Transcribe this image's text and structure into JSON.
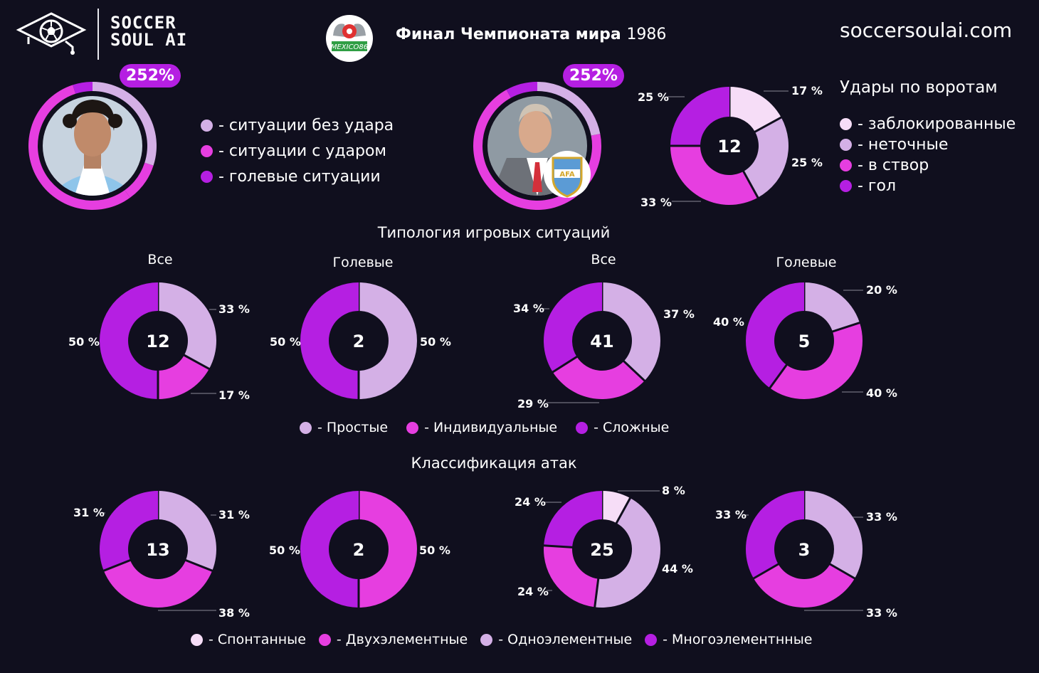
{
  "header": {
    "brand_line1": "SOCCER",
    "brand_line2": "SOUL AI",
    "emblem_text": "MEXICO86",
    "title_bold": "Финал Чемпионата мира",
    "title_year": "1986",
    "site": "soccersoulai.com"
  },
  "players": [
    {
      "badge": "252%",
      "ring": {
        "values": [
          30,
          10,
          55,
          5
        ],
        "colors": [
          "#d4b0e6",
          "#e63ee0",
          "#e63ee0",
          "#b51fe2"
        ]
      }
    },
    {
      "badge": "252%",
      "ring": {
        "values": [
          22,
          15,
          55,
          8
        ],
        "colors": [
          "#d4b0e6",
          "#e63ee0",
          "#e63ee0",
          "#b51fe2"
        ]
      }
    }
  ],
  "situations_legend": [
    {
      "label": "- ситуации без удара",
      "color": "#d4b0e6"
    },
    {
      "label": "- ситуации с ударом",
      "color": "#e63ee0"
    },
    {
      "label": "- голевые ситуации",
      "color": "#b51fe2"
    }
  ],
  "shots_legend": {
    "title": "Удары по воротам",
    "items": [
      {
        "label": "- заблокированные",
        "color": "#f6ddf7"
      },
      {
        "label": "- неточные",
        "color": "#d4b0e6"
      },
      {
        "label": "- в створ",
        "color": "#e63ee0"
      },
      {
        "label": "- гол",
        "color": "#b51fe2"
      }
    ]
  },
  "sections": {
    "typology": "Типология игровых ситуаций",
    "attacks": "Классификация атак"
  },
  "typology_legend": [
    {
      "label": "- Простые",
      "color": "#d4b0e6"
    },
    {
      "label": "- Индивидуальные",
      "color": "#e63ee0"
    },
    {
      "label": "- Сложные",
      "color": "#b51fe2"
    }
  ],
  "attacks_legend": [
    {
      "label": "- Спонтанные",
      "color": "#f6ddf7"
    },
    {
      "label": "- Двухэлементные",
      "color": "#e63ee0"
    },
    {
      "label": "- Одноэлементные",
      "color": "#d4b0e6"
    },
    {
      "label": "- Многоэлементнные",
      "color": "#b51fe2"
    }
  ],
  "chart_data": [
    {
      "id": "shots",
      "type": "pie",
      "title": "",
      "total": "12",
      "categories": [
        "заблокированные",
        "неточные",
        "в створ",
        "гол"
      ],
      "values": [
        17,
        25,
        33,
        25
      ],
      "labels": [
        "17 %",
        "25 %",
        "33 %",
        "25 %"
      ],
      "colors": [
        "#f6ddf7",
        "#d4b0e6",
        "#e63ee0",
        "#b51fe2"
      ]
    },
    {
      "id": "typ1",
      "type": "pie",
      "title": "Все",
      "total": "12",
      "categories": [
        "Простые",
        "Индивидуальные",
        "Сложные"
      ],
      "values": [
        33,
        17,
        50
      ],
      "labels": [
        "33 %",
        "17 %",
        "50 %"
      ],
      "colors": [
        "#d4b0e6",
        "#e63ee0",
        "#b51fe2"
      ]
    },
    {
      "id": "typ2",
      "type": "pie",
      "title": "Голевые",
      "total": "2",
      "categories": [
        "Простые",
        "Сложные"
      ],
      "values": [
        50,
        50
      ],
      "labels": [
        "50 %",
        "50 %"
      ],
      "colors": [
        "#d4b0e6",
        "#b51fe2"
      ]
    },
    {
      "id": "typ3",
      "type": "pie",
      "title": "Все",
      "total": "41",
      "categories": [
        "Простые",
        "Индивидуальные",
        "Сложные"
      ],
      "values": [
        37,
        29,
        34
      ],
      "labels": [
        "37 %",
        "29 %",
        "34 %"
      ],
      "colors": [
        "#d4b0e6",
        "#e63ee0",
        "#b51fe2"
      ]
    },
    {
      "id": "typ4",
      "type": "pie",
      "title": "Голевые",
      "total": "5",
      "categories": [
        "Простые",
        "Индивидуальные",
        "Сложные"
      ],
      "values": [
        20,
        40,
        40
      ],
      "labels": [
        "20 %",
        "40 %",
        "40 %"
      ],
      "colors": [
        "#d4b0e6",
        "#e63ee0",
        "#b51fe2"
      ]
    },
    {
      "id": "att1",
      "type": "pie",
      "title": "",
      "total": "13",
      "categories": [
        "Одноэлементные",
        "Двухэлементные",
        "Многоэлементнные"
      ],
      "values": [
        31,
        38,
        31
      ],
      "labels": [
        "31 %",
        "38 %",
        "31 %"
      ],
      "colors": [
        "#d4b0e6",
        "#e63ee0",
        "#b51fe2"
      ]
    },
    {
      "id": "att2",
      "type": "pie",
      "title": "",
      "total": "2",
      "categories": [
        "Двухэлементные",
        "Многоэлементнные"
      ],
      "values": [
        50,
        50
      ],
      "labels": [
        "50 %",
        "50 %"
      ],
      "colors": [
        "#e63ee0",
        "#b51fe2"
      ]
    },
    {
      "id": "att3",
      "type": "pie",
      "title": "",
      "total": "25",
      "categories": [
        "Спонтанные",
        "Одноэлементные",
        "Двухэлементные",
        "Многоэлементнные"
      ],
      "values": [
        8,
        44,
        24,
        24
      ],
      "labels": [
        "8 %",
        "44 %",
        "24 %",
        "24 %"
      ],
      "colors": [
        "#f6ddf7",
        "#d4b0e6",
        "#e63ee0",
        "#b51fe2"
      ]
    },
    {
      "id": "att4",
      "type": "pie",
      "title": "",
      "total": "3",
      "categories": [
        "Одноэлементные",
        "Двухэлементные",
        "Многоэлементнные"
      ],
      "values": [
        33,
        33,
        33
      ],
      "labels": [
        "33 %",
        "33 %",
        "33 %"
      ],
      "colors": [
        "#d4b0e6",
        "#e63ee0",
        "#b51fe2"
      ]
    }
  ]
}
